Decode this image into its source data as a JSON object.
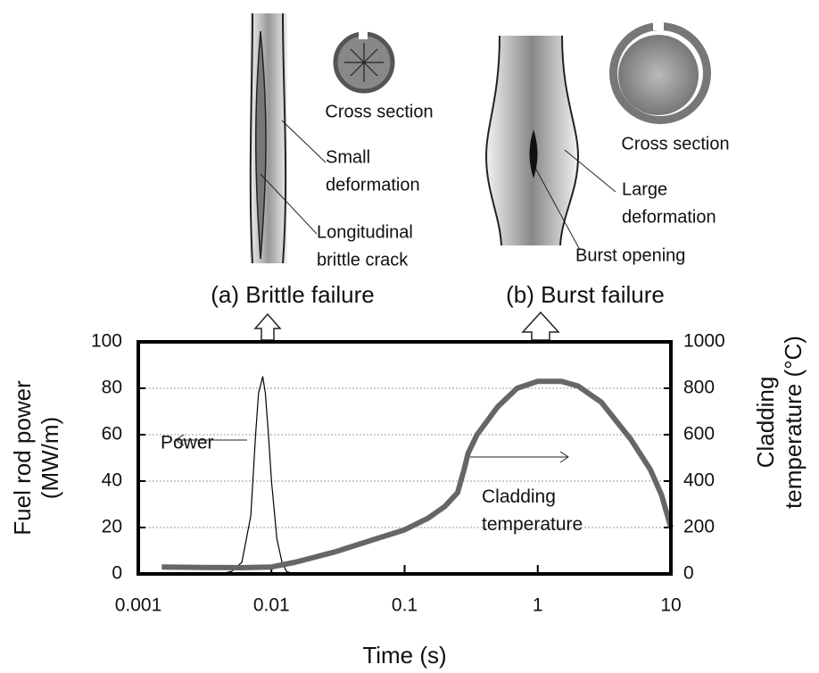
{
  "diagrams": [
    {
      "caption": "(a) Brittle failure",
      "labels": [
        [
          "Cross section"
        ],
        [
          "Small",
          "deformation"
        ],
        [
          "Longitudinal",
          "brittle crack"
        ]
      ]
    },
    {
      "caption": "(b) Burst failure",
      "labels": [
        [
          "Cross section"
        ],
        [
          "Large",
          "deformation"
        ],
        [
          "Burst opening"
        ]
      ]
    }
  ],
  "chart_data": {
    "type": "line",
    "xlabel": "Time (s)",
    "ylabel": [
      "Fuel rod power",
      "(MW/m)"
    ],
    "y2label": [
      "Cladding",
      "temperature (°C)"
    ],
    "xscale": "log",
    "xlim": [
      0.001,
      10
    ],
    "xticks": [
      0.001,
      0.01,
      0.1,
      1,
      10
    ],
    "ylim": [
      0,
      100
    ],
    "yticks": [
      0,
      20,
      40,
      60,
      80,
      100
    ],
    "y2lim": [
      0,
      1000
    ],
    "y2ticks": [
      0,
      200,
      400,
      600,
      800,
      1000
    ],
    "grid": true,
    "series": [
      {
        "name": "Power",
        "color": "#000000",
        "x": [
          0.002,
          0.004,
          0.005,
          0.006,
          0.007,
          0.0076,
          0.008,
          0.0086,
          0.009,
          0.0095,
          0.01,
          0.011,
          0.012,
          0.013,
          0.015
        ],
        "values": [
          0,
          0,
          1,
          5,
          25,
          60,
          78,
          85,
          78,
          60,
          40,
          15,
          5,
          1,
          0
        ]
      },
      {
        "name": "Cladding temperature",
        "color": "#666666",
        "axis": "y2",
        "x": [
          0.0015,
          0.003,
          0.006,
          0.01,
          0.015,
          0.03,
          0.06,
          0.1,
          0.15,
          0.2,
          0.25,
          0.28,
          0.3,
          0.35,
          0.5,
          0.7,
          1,
          1.5,
          2,
          3,
          5,
          7,
          8.5,
          10
        ],
        "values": [
          30,
          28,
          27,
          30,
          50,
          95,
          150,
          190,
          240,
          290,
          350,
          450,
          520,
          600,
          720,
          800,
          830,
          830,
          810,
          740,
          580,
          450,
          340,
          200
        ]
      }
    ]
  }
}
